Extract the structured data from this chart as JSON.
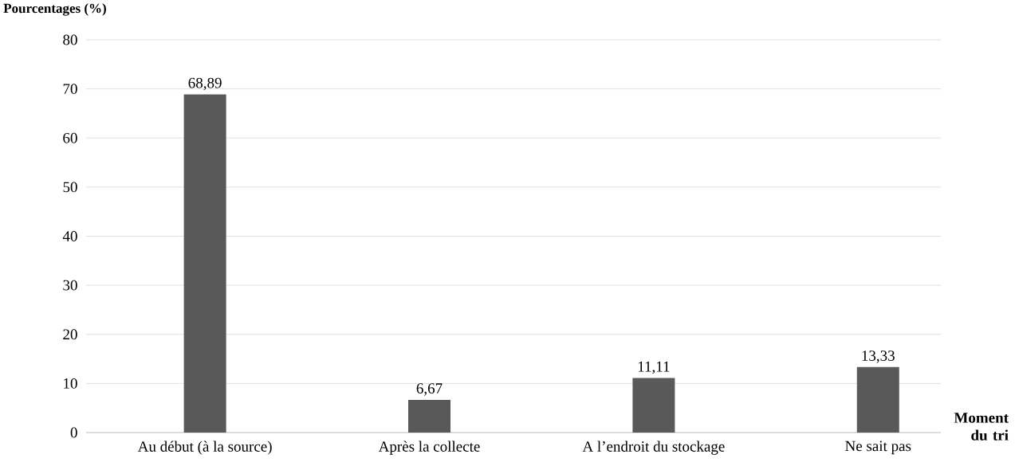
{
  "chart_data": {
    "type": "bar",
    "ylabel": "Pourcentages (%)",
    "xlabel": "Moment du tri",
    "categories": [
      "Au début (à la source)",
      "Après la collecte",
      "A l’endroit du stockage",
      "Ne sait pas"
    ],
    "values": [
      68.89,
      6.67,
      11.11,
      13.33
    ],
    "value_labels": [
      "68,89",
      "6,67",
      "11,11",
      "13,33"
    ],
    "color": "#595959",
    "ylim": [
      0,
      80
    ],
    "yticks": [
      0,
      10,
      20,
      30,
      40,
      50,
      60,
      70,
      80
    ],
    "grid": "y"
  }
}
